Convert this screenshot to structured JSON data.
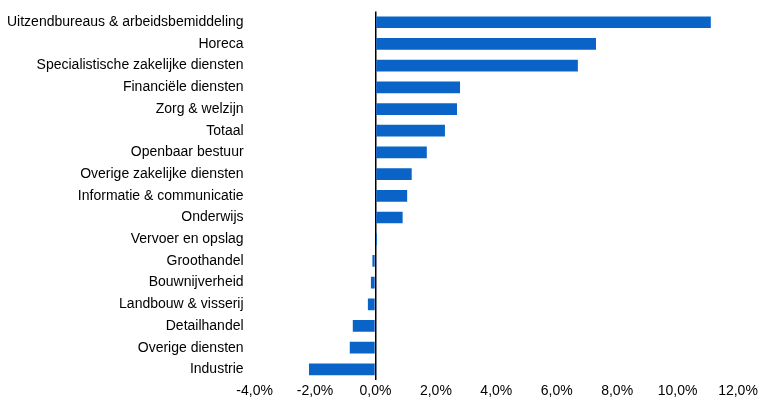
{
  "chart_data": {
    "type": "bar",
    "orientation": "horizontal",
    "grid": false,
    "color": "#0a64c8",
    "categories": [
      "Uitzendbureaus & arbeidsbemiddeling",
      "Horeca",
      "Specialistische zakelijke diensten",
      "Financiële diensten",
      "Zorg & welzijn",
      "Totaal",
      "Openbaar bestuur",
      "Overige zakelijke diensten",
      "Informatie & communicatie",
      "Onderwijs",
      "Vervoer en opslag",
      "Groothandel",
      "Bouwnijverheid",
      "Landbouw & visserij",
      "Detailhandel",
      "Overige diensten",
      "Industrie"
    ],
    "values": [
      11.1,
      7.3,
      6.7,
      2.8,
      2.7,
      2.3,
      1.7,
      1.2,
      1.05,
      0.9,
      0.05,
      -0.1,
      -0.15,
      -0.25,
      -0.75,
      -0.85,
      -2.2
    ],
    "xlim": [
      -4,
      12
    ],
    "xticks": [
      {
        "value": -4,
        "label": "-4,0%"
      },
      {
        "value": -2,
        "label": "-2,0%"
      },
      {
        "value": 0,
        "label": "0,0%"
      },
      {
        "value": 2,
        "label": "2,0%"
      },
      {
        "value": 4,
        "label": "4,0%"
      },
      {
        "value": 6,
        "label": "6,0%"
      },
      {
        "value": 8,
        "label": "8,0%"
      },
      {
        "value": 10,
        "label": "10,0%"
      },
      {
        "value": 12,
        "label": "12,0%"
      }
    ]
  }
}
